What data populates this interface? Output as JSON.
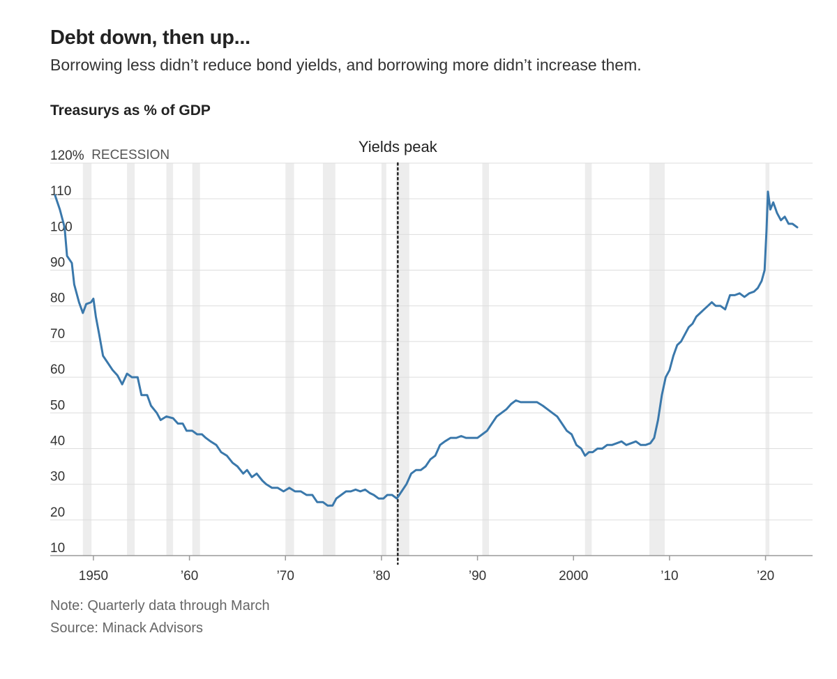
{
  "header": {
    "title": "Debt down, then up...",
    "subtitle": "Borrowing less didn’t reduce bond yields, and borrowing more didn’t increase them."
  },
  "chart_data": {
    "type": "line",
    "title": "Treasurys as % of GDP",
    "xlabel": "",
    "ylabel": "",
    "xlim": [
      1945.5,
      2024.9
    ],
    "ylim": [
      10,
      120
    ],
    "y_ticks": [
      {
        "value": 120,
        "label": "120%"
      },
      {
        "value": 110,
        "label": "110"
      },
      {
        "value": 100,
        "label": "100"
      },
      {
        "value": 90,
        "label": "90"
      },
      {
        "value": 80,
        "label": "80"
      },
      {
        "value": 70,
        "label": "70"
      },
      {
        "value": 60,
        "label": "60"
      },
      {
        "value": 50,
        "label": "50"
      },
      {
        "value": 40,
        "label": "40"
      },
      {
        "value": 30,
        "label": "30"
      },
      {
        "value": 20,
        "label": "20"
      },
      {
        "value": 10,
        "label": "10"
      }
    ],
    "x_ticks": [
      {
        "value": 1950,
        "label": "1950"
      },
      {
        "value": 1960,
        "label": "’60"
      },
      {
        "value": 1970,
        "label": "’70"
      },
      {
        "value": 1980,
        "label": "’80"
      },
      {
        "value": 1990,
        "label": "’90"
      },
      {
        "value": 2000,
        "label": "2000"
      },
      {
        "value": 2010,
        "label": "’10"
      },
      {
        "value": 2020,
        "label": "’20"
      }
    ],
    "grid": true,
    "line_color": "#3a78ab",
    "recession_color": "#ededed",
    "recession_label": "RECESSION",
    "recessions": [
      [
        1948.9,
        1949.8
      ],
      [
        1953.5,
        1954.3
      ],
      [
        1957.6,
        1958.3
      ],
      [
        1960.3,
        1961.1
      ],
      [
        1970.0,
        1970.9
      ],
      [
        1973.9,
        1975.2
      ],
      [
        1980.0,
        1980.5
      ],
      [
        1981.5,
        1982.9
      ],
      [
        1990.5,
        1991.2
      ],
      [
        2001.2,
        2001.9
      ],
      [
        2007.9,
        2009.5
      ],
      [
        2020.0,
        2020.4
      ]
    ],
    "annotation": {
      "label": "Yields peak",
      "x": 1981.7
    },
    "series": [
      {
        "values": [
          [
            1946.0,
            111
          ],
          [
            1946.5,
            107
          ],
          [
            1947.0,
            102
          ],
          [
            1947.25,
            94
          ],
          [
            1947.75,
            92
          ],
          [
            1948.0,
            86
          ],
          [
            1948.5,
            81
          ],
          [
            1948.9,
            78
          ],
          [
            1949.25,
            80.5
          ],
          [
            1949.75,
            81
          ],
          [
            1950.0,
            82
          ],
          [
            1950.25,
            77
          ],
          [
            1950.6,
            72
          ],
          [
            1951.0,
            66
          ],
          [
            1951.5,
            64
          ],
          [
            1952.0,
            62
          ],
          [
            1952.5,
            60.5
          ],
          [
            1953.0,
            58
          ],
          [
            1953.5,
            61
          ],
          [
            1954.0,
            60
          ],
          [
            1954.6,
            60
          ],
          [
            1955.0,
            55
          ],
          [
            1955.6,
            55
          ],
          [
            1956.0,
            52
          ],
          [
            1956.6,
            50
          ],
          [
            1957.0,
            48
          ],
          [
            1957.6,
            49
          ],
          [
            1958.3,
            48.5
          ],
          [
            1958.8,
            47
          ],
          [
            1959.3,
            47
          ],
          [
            1959.7,
            45
          ],
          [
            1960.3,
            45
          ],
          [
            1960.8,
            44
          ],
          [
            1961.3,
            44
          ],
          [
            1961.7,
            43
          ],
          [
            1962.2,
            42
          ],
          [
            1962.8,
            41
          ],
          [
            1963.3,
            39
          ],
          [
            1963.9,
            38
          ],
          [
            1964.5,
            36
          ],
          [
            1965.0,
            35
          ],
          [
            1965.6,
            33
          ],
          [
            1966.0,
            34
          ],
          [
            1966.5,
            32
          ],
          [
            1967.0,
            33
          ],
          [
            1967.6,
            31
          ],
          [
            1968.0,
            30
          ],
          [
            1968.6,
            29
          ],
          [
            1969.2,
            29
          ],
          [
            1969.8,
            28
          ],
          [
            1970.4,
            29
          ],
          [
            1971.0,
            28
          ],
          [
            1971.6,
            28
          ],
          [
            1972.2,
            27
          ],
          [
            1972.8,
            27
          ],
          [
            1973.3,
            25
          ],
          [
            1973.9,
            25
          ],
          [
            1974.4,
            24
          ],
          [
            1974.9,
            24
          ],
          [
            1975.3,
            26
          ],
          [
            1975.8,
            27
          ],
          [
            1976.3,
            28
          ],
          [
            1976.8,
            28
          ],
          [
            1977.3,
            28.5
          ],
          [
            1977.8,
            28
          ],
          [
            1978.3,
            28.5
          ],
          [
            1978.8,
            27.5
          ],
          [
            1979.2,
            27
          ],
          [
            1979.7,
            26
          ],
          [
            1980.2,
            26
          ],
          [
            1980.6,
            27
          ],
          [
            1981.1,
            27
          ],
          [
            1981.6,
            26
          ],
          [
            1982.1,
            28
          ],
          [
            1982.6,
            30
          ],
          [
            1983.1,
            33
          ],
          [
            1983.6,
            34
          ],
          [
            1984.1,
            34
          ],
          [
            1984.6,
            35
          ],
          [
            1985.1,
            37
          ],
          [
            1985.6,
            38
          ],
          [
            1986.1,
            41
          ],
          [
            1986.6,
            42
          ],
          [
            1987.2,
            43
          ],
          [
            1987.8,
            43
          ],
          [
            1988.3,
            43.5
          ],
          [
            1988.8,
            43
          ],
          [
            1989.4,
            43
          ],
          [
            1990.0,
            43
          ],
          [
            1990.5,
            44
          ],
          [
            1991.0,
            45
          ],
          [
            1991.5,
            47
          ],
          [
            1992.0,
            49
          ],
          [
            1992.5,
            50
          ],
          [
            1993.0,
            51
          ],
          [
            1993.5,
            52.5
          ],
          [
            1994.0,
            53.5
          ],
          [
            1994.5,
            53
          ],
          [
            1995.0,
            53
          ],
          [
            1995.6,
            53
          ],
          [
            1996.2,
            53
          ],
          [
            1996.8,
            52
          ],
          [
            1997.3,
            51
          ],
          [
            1997.8,
            50
          ],
          [
            1998.3,
            49
          ],
          [
            1998.8,
            47
          ],
          [
            1999.3,
            45
          ],
          [
            1999.8,
            44
          ],
          [
            2000.3,
            41
          ],
          [
            2000.8,
            40
          ],
          [
            2001.2,
            38
          ],
          [
            2001.6,
            39
          ],
          [
            2002.0,
            39
          ],
          [
            2002.5,
            40
          ],
          [
            2003.0,
            40
          ],
          [
            2003.5,
            41
          ],
          [
            2004.0,
            41
          ],
          [
            2004.5,
            41.5
          ],
          [
            2005.0,
            42
          ],
          [
            2005.5,
            41
          ],
          [
            2006.0,
            41.5
          ],
          [
            2006.5,
            42
          ],
          [
            2007.0,
            41
          ],
          [
            2007.5,
            41
          ],
          [
            2008.0,
            41.5
          ],
          [
            2008.4,
            43
          ],
          [
            2008.8,
            48
          ],
          [
            2009.2,
            55
          ],
          [
            2009.6,
            60
          ],
          [
            2010.0,
            62
          ],
          [
            2010.4,
            66
          ],
          [
            2010.8,
            69
          ],
          [
            2011.2,
            70
          ],
          [
            2011.6,
            72
          ],
          [
            2012.0,
            74
          ],
          [
            2012.4,
            75
          ],
          [
            2012.8,
            77
          ],
          [
            2013.2,
            78
          ],
          [
            2013.6,
            79
          ],
          [
            2014.0,
            80
          ],
          [
            2014.4,
            81
          ],
          [
            2014.8,
            80
          ],
          [
            2015.3,
            80
          ],
          [
            2015.8,
            79
          ],
          [
            2016.3,
            83
          ],
          [
            2016.8,
            83
          ],
          [
            2017.3,
            83.5
          ],
          [
            2017.8,
            82.5
          ],
          [
            2018.3,
            83.5
          ],
          [
            2018.8,
            84
          ],
          [
            2019.2,
            85
          ],
          [
            2019.6,
            87
          ],
          [
            2019.9,
            90
          ],
          [
            2020.1,
            101
          ],
          [
            2020.25,
            112
          ],
          [
            2020.5,
            107
          ],
          [
            2020.8,
            109
          ],
          [
            2021.2,
            106
          ],
          [
            2021.6,
            104
          ],
          [
            2022.0,
            105
          ],
          [
            2022.4,
            103
          ],
          [
            2022.8,
            103
          ],
          [
            2023.3,
            102
          ]
        ]
      }
    ]
  },
  "footer": {
    "note": "Note: Quarterly data through March",
    "source": "Source: Minack Advisors"
  }
}
